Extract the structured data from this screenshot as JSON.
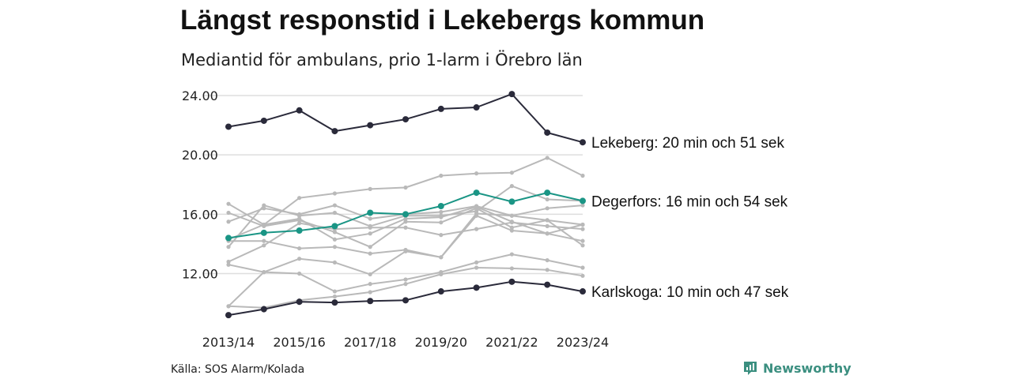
{
  "header": {
    "title": "Längst responstid i Lekebergs kommun",
    "subtitle": "Mediantid för ambulans, prio 1-larm i Örebro län"
  },
  "footer": {
    "source": "Källa: SOS Alarm/Kolada",
    "brand": "Newsworthy",
    "brand_icon": "newsworthy-logo-icon"
  },
  "colors": {
    "highlight_dark": "#2a2a3a",
    "highlight_teal": "#1a9585",
    "background_series": "#b9b9b9",
    "grid": "#dedede",
    "brand": "#3b8f80"
  },
  "chart_data": {
    "type": "line",
    "x": [
      "2013/14",
      "2014/15",
      "2015/16",
      "2016/17",
      "2017/18",
      "2018/19",
      "2019/20",
      "2020/21",
      "2021/22",
      "2022/23",
      "2023/24"
    ],
    "x_tick_labels": [
      "2013/14",
      "2015/16",
      "2017/18",
      "2019/20",
      "2021/22",
      "2023/24"
    ],
    "y_ticks": [
      12,
      16,
      20,
      24
    ],
    "y_tick_labels": [
      "12.00",
      "16.00",
      "20.00",
      "24.00"
    ],
    "ylim": [
      8.7,
      25
    ],
    "grid": "horizontal",
    "legend": "none",
    "highlighted_series": [
      {
        "label": "Lekeberg: 20 min och 51 sek",
        "color": "#2a2a3a",
        "values": [
          21.9,
          22.3,
          23.0,
          21.6,
          22.0,
          22.4,
          23.1,
          23.2,
          24.1,
          21.5,
          20.85
        ]
      },
      {
        "label": "Degerfors: 16 min och 54 sek",
        "color": "#1a9585",
        "values": [
          14.4,
          14.75,
          14.9,
          15.2,
          16.1,
          16.0,
          16.55,
          17.45,
          16.85,
          17.45,
          16.9
        ]
      },
      {
        "label": "Karlskoga: 10 min och 47 sek",
        "color": "#2a2a3a",
        "values": [
          9.2,
          9.6,
          10.1,
          10.05,
          10.15,
          10.2,
          10.8,
          11.05,
          11.45,
          11.25,
          10.8
        ]
      }
    ],
    "background_series": [
      {
        "values": [
          16.7,
          15.3,
          17.1,
          17.4,
          17.7,
          17.8,
          18.6,
          18.75,
          18.8,
          19.8,
          18.6
        ]
      },
      {
        "values": [
          13.8,
          16.6,
          15.9,
          16.1,
          15.2,
          15.9,
          15.9,
          16.2,
          17.9,
          17.0,
          16.9
        ]
      },
      {
        "values": [
          15.5,
          16.4,
          16.0,
          16.6,
          15.7,
          16.0,
          16.15,
          16.55,
          15.9,
          16.4,
          16.6
        ]
      },
      {
        "values": [
          16.1,
          15.2,
          15.6,
          14.8,
          13.8,
          15.5,
          15.45,
          16.4,
          15.1,
          15.6,
          15.3
        ]
      },
      {
        "values": [
          14.3,
          15.3,
          15.7,
          14.3,
          14.7,
          15.7,
          15.8,
          16.5,
          15.5,
          14.7,
          15.3
        ]
      },
      {
        "values": [
          14.2,
          14.2,
          13.7,
          13.8,
          13.35,
          13.6,
          13.1,
          16.05,
          15.9,
          15.6,
          13.9
        ]
      },
      {
        "values": [
          12.8,
          13.9,
          15.4,
          15.0,
          15.1,
          15.1,
          14.6,
          15.0,
          15.45,
          15.2,
          15.0
        ]
      },
      {
        "values": [
          9.8,
          12.1,
          13.0,
          12.75,
          11.95,
          13.5,
          13.1,
          15.9,
          14.9,
          14.7,
          14.2
        ]
      },
      {
        "values": [
          12.6,
          12.1,
          12.0,
          10.8,
          11.3,
          11.6,
          12.1,
          12.75,
          13.3,
          12.9,
          12.4
        ]
      },
      {
        "values": [
          9.8,
          9.7,
          10.2,
          10.45,
          10.75,
          11.3,
          11.95,
          12.4,
          12.35,
          12.25,
          11.85
        ]
      }
    ]
  }
}
